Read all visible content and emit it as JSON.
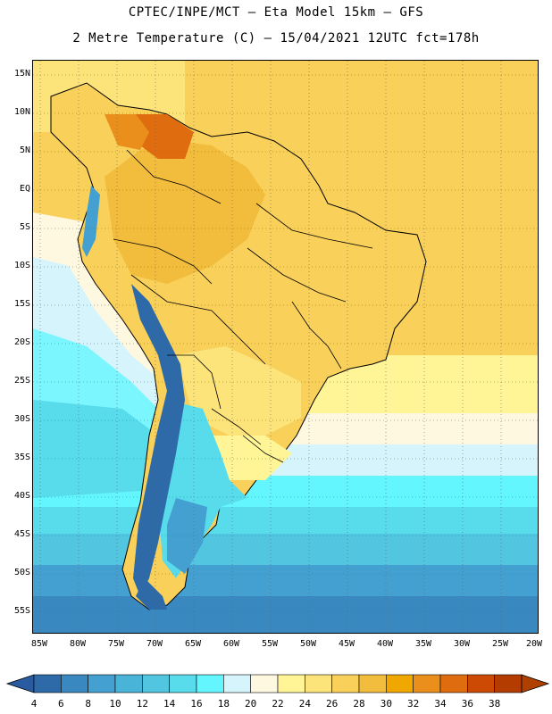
{
  "header": {
    "line1": "CPTEC/INPE/MCT –  Eta Model 15km – GFS",
    "line2": "2 Metre Temperature (C) – 15/04/2021 12UTC fct=178h"
  },
  "map": {
    "region": "South America",
    "variable": "2 Metre Temperature",
    "unit": "C",
    "lat_labels": [
      "15N",
      "10N",
      "5N",
      "EQ",
      "5S",
      "10S",
      "15S",
      "20S",
      "25S",
      "30S",
      "35S",
      "40S",
      "45S",
      "50S",
      "55S"
    ],
    "lon_labels": [
      "85W",
      "80W",
      "75W",
      "70W",
      "65W",
      "60W",
      "55W",
      "50W",
      "45W",
      "40W",
      "35W",
      "30W",
      "25W",
      "20W"
    ]
  },
  "colorbar": {
    "values": [
      "4",
      "6",
      "8",
      "10",
      "12",
      "14",
      "16",
      "18",
      "20",
      "22",
      "24",
      "26",
      "28",
      "30",
      "32",
      "34",
      "36",
      "38"
    ],
    "colors": [
      "#2e6aa8",
      "#3a88c0",
      "#44a0d0",
      "#4ab4d8",
      "#52c6e0",
      "#58dcec",
      "#64f6ff",
      "#d6f4fc",
      "#fff8e0",
      "#fff496",
      "#fde47a",
      "#f8d05a",
      "#f2bc3c",
      "#f0a800",
      "#ea8e1c",
      "#e06c10",
      "#cc4a04",
      "#b43c00"
    ],
    "low_end_color": "#2a5aa0",
    "high_end_color": "#b04000"
  }
}
